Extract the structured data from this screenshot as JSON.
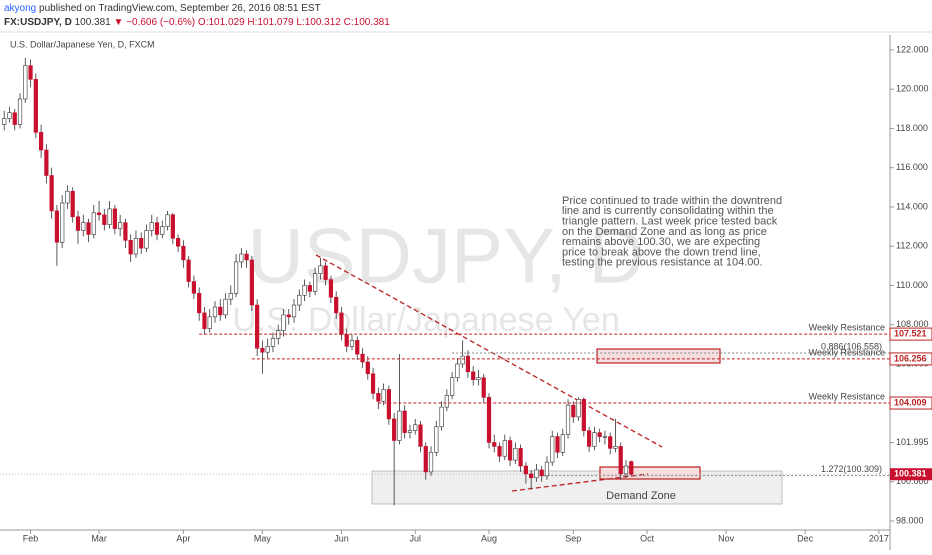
{
  "header": {
    "author": "akyong",
    "published": "published on TradingView.com, September 26, 2016 08:51 EST",
    "symbol": "FX:USDJPY, D",
    "price": "100.381",
    "change": "▼ −0.606 (−0.6%)",
    "open": "O:101.029",
    "high": "H:101.079",
    "low": "L:100.312",
    "close": "C:100.381"
  },
  "chart_data": {
    "type": "candlestick",
    "title": "U.S. Dollar/Japanese Yen, D, FXCM",
    "watermark": "USDJPY, D",
    "watermark_sub": "U.S. Dollar/Japanese Yen",
    "up_color": "#ffffff",
    "down_color": "#c8102e",
    "xlim": [
      -0.8,
      168.1
    ],
    "ylim": [
      97.54,
      122.76
    ],
    "xticks": [
      {
        "value": 5,
        "label": "Feb"
      },
      {
        "value": 18,
        "label": "Mar"
      },
      {
        "value": 34,
        "label": "Apr"
      },
      {
        "value": 49,
        "label": "May"
      },
      {
        "value": 64,
        "label": "Jun"
      },
      {
        "value": 78,
        "label": "Jul"
      },
      {
        "value": 92,
        "label": "Aug"
      },
      {
        "value": 108,
        "label": "Sep"
      },
      {
        "value": 122,
        "label": "Oct"
      },
      {
        "value": 137,
        "label": "Nov"
      },
      {
        "value": 152,
        "label": "Dec"
      },
      {
        "value": 166,
        "label": "2017"
      }
    ],
    "yticks": [
      {
        "value": 98,
        "label": "98.000"
      },
      {
        "value": 100,
        "label": "100.000"
      },
      101.995,
      {
        "value": 104,
        "label": "104.000"
      },
      {
        "value": 106,
        "label": "106.000"
      },
      {
        "value": 108,
        "label": "108.000"
      },
      {
        "value": 110,
        "label": "110.000"
      },
      {
        "value": 112,
        "label": "112.000"
      },
      {
        "value": 114,
        "label": "114.000"
      },
      {
        "value": 116,
        "label": "116.000"
      },
      {
        "value": 118,
        "label": "118.000"
      },
      {
        "value": 120,
        "label": "120.000"
      },
      {
        "value": 122,
        "label": "122.000"
      }
    ],
    "levels": [
      {
        "value": 107.521,
        "name": "Weekly Resistance",
        "start": 37
      },
      {
        "value": 106.256,
        "name": "Weekly Resistance",
        "start": 47
      },
      {
        "value": 104.009,
        "name": "Weekly Resistance",
        "start": 71
      }
    ],
    "last_price": 100.381,
    "fib": [
      {
        "value": 106.558,
        "label": "0.886(106.558)",
        "start": 85
      },
      {
        "value": 100.309,
        "label": "1.272(100.309)",
        "start": 100
      }
    ],
    "annotation": [
      "Price continued to trade within the downtrend",
      "line and is currently consolidating within the",
      "triangle pattern. Last week price tested back",
      "on the Demand Zone and as long as price",
      "remains above 100.30, we are expecting",
      "price to break above the down trend line,",
      "testing the previous resistance at 104.00."
    ],
    "zone_label": "Demand Zone",
    "candles": [
      [
        118.2,
        118.9,
        117.9,
        118.5
      ],
      [
        118.5,
        119.1,
        118.3,
        118.8
      ],
      [
        118.8,
        119.0,
        117.9,
        118.2
      ],
      [
        118.2,
        119.8,
        118.0,
        119.5
      ],
      [
        119.5,
        121.6,
        119.3,
        121.2
      ],
      [
        121.2,
        121.5,
        120.1,
        120.5
      ],
      [
        120.5,
        120.8,
        117.5,
        117.8
      ],
      [
        117.8,
        118.2,
        116.5,
        116.9
      ],
      [
        116.9,
        117.2,
        115.2,
        115.6
      ],
      [
        115.6,
        116.0,
        113.4,
        113.8
      ],
      [
        113.8,
        114.1,
        111.0,
        112.2
      ],
      [
        112.2,
        114.6,
        111.9,
        114.2
      ],
      [
        114.2,
        115.1,
        113.9,
        114.8
      ],
      [
        114.8,
        115.0,
        113.2,
        113.5
      ],
      [
        113.5,
        113.8,
        112.1,
        112.8
      ],
      [
        112.8,
        113.6,
        112.5,
        113.2
      ],
      [
        113.2,
        113.4,
        112.2,
        112.6
      ],
      [
        112.6,
        114.1,
        112.4,
        113.7
      ],
      [
        113.7,
        114.3,
        113.3,
        113.6
      ],
      [
        113.6,
        113.9,
        112.8,
        113.1
      ],
      [
        113.1,
        114.3,
        112.9,
        113.9
      ],
      [
        113.9,
        114.1,
        112.6,
        112.9
      ],
      [
        112.9,
        113.6,
        112.5,
        113.2
      ],
      [
        113.2,
        113.4,
        111.9,
        112.3
      ],
      [
        112.3,
        112.6,
        111.2,
        111.6
      ],
      [
        111.6,
        112.8,
        111.4,
        112.4
      ],
      [
        112.4,
        112.7,
        111.6,
        111.9
      ],
      [
        111.9,
        113.1,
        111.7,
        112.8
      ],
      [
        112.8,
        113.6,
        112.5,
        113.2
      ],
      [
        113.2,
        113.5,
        112.3,
        112.6
      ],
      [
        112.6,
        113.3,
        112.4,
        113.0
      ],
      [
        113.0,
        113.8,
        112.8,
        113.6
      ],
      [
        113.6,
        113.7,
        112.1,
        112.4
      ],
      [
        112.4,
        112.6,
        111.7,
        112.0
      ],
      [
        112.0,
        112.3,
        110.9,
        111.3
      ],
      [
        111.3,
        111.5,
        109.9,
        110.2
      ],
      [
        110.2,
        110.5,
        109.3,
        109.6
      ],
      [
        109.6,
        109.9,
        108.2,
        108.6
      ],
      [
        108.6,
        108.9,
        107.5,
        107.8
      ],
      [
        107.8,
        108.8,
        107.6,
        108.4
      ],
      [
        108.4,
        109.2,
        108.1,
        108.9
      ],
      [
        108.9,
        109.3,
        108.2,
        108.5
      ],
      [
        108.5,
        109.6,
        108.3,
        109.3
      ],
      [
        109.3,
        110.0,
        109.0,
        109.6
      ],
      [
        109.6,
        111.6,
        109.4,
        111.2
      ],
      [
        111.2,
        111.9,
        110.9,
        111.6
      ],
      [
        111.6,
        111.8,
        110.9,
        111.3
      ],
      [
        111.3,
        111.5,
        108.7,
        109.0
      ],
      [
        109.0,
        109.3,
        106.4,
        106.8
      ],
      [
        106.8,
        107.2,
        105.5,
        106.6
      ],
      [
        106.6,
        107.3,
        106.3,
        106.9
      ],
      [
        106.9,
        107.6,
        106.6,
        107.3
      ],
      [
        107.3,
        108.0,
        107.0,
        107.7
      ],
      [
        107.7,
        108.8,
        107.4,
        108.5
      ],
      [
        108.5,
        108.8,
        108.0,
        108.4
      ],
      [
        108.4,
        109.3,
        108.1,
        109.0
      ],
      [
        109.0,
        109.8,
        108.7,
        109.5
      ],
      [
        109.5,
        110.3,
        109.2,
        110.0
      ],
      [
        110.0,
        110.2,
        109.4,
        109.7
      ],
      [
        109.7,
        110.9,
        109.5,
        110.6
      ],
      [
        110.6,
        111.4,
        110.3,
        111.0
      ],
      [
        111.0,
        111.2,
        110.0,
        110.3
      ],
      [
        110.3,
        110.5,
        109.1,
        109.4
      ],
      [
        109.4,
        109.7,
        108.3,
        108.6
      ],
      [
        108.6,
        108.9,
        107.2,
        107.5
      ],
      [
        107.5,
        107.8,
        106.6,
        106.9
      ],
      [
        106.9,
        107.5,
        106.7,
        107.2
      ],
      [
        107.2,
        107.4,
        106.2,
        106.5
      ],
      [
        106.5,
        106.8,
        105.8,
        106.1
      ],
      [
        106.1,
        106.4,
        105.2,
        105.5
      ],
      [
        105.5,
        105.8,
        104.2,
        104.5
      ],
      [
        104.5,
        104.8,
        103.7,
        104.1
      ],
      [
        104.1,
        105.0,
        103.9,
        104.7
      ],
      [
        104.7,
        104.9,
        102.9,
        103.2
      ],
      [
        103.2,
        103.5,
        98.8,
        102.1
      ],
      [
        102.1,
        106.5,
        101.9,
        103.6
      ],
      [
        103.6,
        103.9,
        102.2,
        102.5
      ],
      [
        102.5,
        102.9,
        102.2,
        102.6
      ],
      [
        102.6,
        103.2,
        102.4,
        102.9
      ],
      [
        102.9,
        103.1,
        101.5,
        101.8
      ],
      [
        101.8,
        102.0,
        100.1,
        100.5
      ],
      [
        100.5,
        101.8,
        100.3,
        101.5
      ],
      [
        101.5,
        103.1,
        101.3,
        102.8
      ],
      [
        102.8,
        104.1,
        102.6,
        103.8
      ],
      [
        103.8,
        104.7,
        103.6,
        104.4
      ],
      [
        104.4,
        105.6,
        104.2,
        105.3
      ],
      [
        105.3,
        106.3,
        105.1,
        106.0
      ],
      [
        106.0,
        107.2,
        105.8,
        106.4
      ],
      [
        106.4,
        106.7,
        105.3,
        105.6
      ],
      [
        105.6,
        105.9,
        104.9,
        105.2
      ],
      [
        105.2,
        105.7,
        104.9,
        105.3
      ],
      [
        105.3,
        105.5,
        104.0,
        104.3
      ],
      [
        104.3,
        104.5,
        101.7,
        102.0
      ],
      [
        102.0,
        102.4,
        101.5,
        101.8
      ],
      [
        101.8,
        102.0,
        101.0,
        101.3
      ],
      [
        101.3,
        102.4,
        101.1,
        102.1
      ],
      [
        102.1,
        102.3,
        100.8,
        101.1
      ],
      [
        101.1,
        102.0,
        100.9,
        101.7
      ],
      [
        101.7,
        101.9,
        100.5,
        100.8
      ],
      [
        100.8,
        101.0,
        99.9,
        100.4
      ],
      [
        100.4,
        100.6,
        99.6,
        100.2
      ],
      [
        100.2,
        100.9,
        100.0,
        100.6
      ],
      [
        100.6,
        100.8,
        100.0,
        100.3
      ],
      [
        100.3,
        101.3,
        100.1,
        101.0
      ],
      [
        101.0,
        102.6,
        100.8,
        102.3
      ],
      [
        102.3,
        102.5,
        101.2,
        101.5
      ],
      [
        101.5,
        102.7,
        101.3,
        102.4
      ],
      [
        102.4,
        104.2,
        102.2,
        103.9
      ],
      [
        103.9,
        104.1,
        103.0,
        103.3
      ],
      [
        103.3,
        104.3,
        103.1,
        104.2
      ],
      [
        104.2,
        104.3,
        102.3,
        102.6
      ],
      [
        102.6,
        102.8,
        101.5,
        101.8
      ],
      [
        101.8,
        102.8,
        101.6,
        102.5
      ],
      [
        102.5,
        102.7,
        102.0,
        102.3
      ],
      [
        102.3,
        102.6,
        101.9,
        102.3
      ],
      [
        102.3,
        102.5,
        101.4,
        101.7
      ],
      [
        101.7,
        103.2,
        101.5,
        101.8
      ],
      [
        101.8,
        102.0,
        100.1,
        100.4
      ],
      [
        100.4,
        101.1,
        100.2,
        100.8
      ],
      [
        101.029,
        101.079,
        100.312,
        100.381
      ]
    ]
  }
}
